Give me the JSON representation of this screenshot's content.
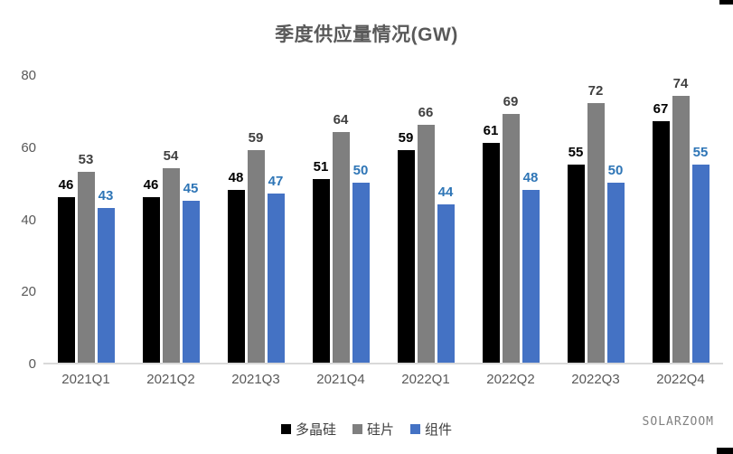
{
  "chart_data": {
    "type": "bar",
    "title": "季度供应量情况(GW)",
    "categories": [
      "2021Q1",
      "2021Q2",
      "2021Q3",
      "2021Q4",
      "2022Q1",
      "2022Q2",
      "2022Q3",
      "2022Q4"
    ],
    "series": [
      {
        "name": "多晶硅",
        "color": "#000000",
        "label_color": "#000000",
        "values": [
          46,
          46,
          48,
          51,
          59,
          61,
          55,
          67
        ]
      },
      {
        "name": "硅片",
        "color": "#7f7f7f",
        "label_color": "#404040",
        "values": [
          53,
          54,
          59,
          64,
          66,
          69,
          72,
          74
        ]
      },
      {
        "name": "组件",
        "color": "#4472c4",
        "label_color": "#2e75b6",
        "values": [
          43,
          45,
          47,
          50,
          44,
          48,
          50,
          55
        ]
      }
    ],
    "y_ticks": [
      0,
      20,
      40,
      60,
      80
    ],
    "ylim": [
      0,
      80
    ],
    "grid": false,
    "legend_position": "bottom",
    "data_labels": true
  },
  "watermark": "SOLARZOOM",
  "colors": {
    "title": "#595959",
    "axis_text": "#595959",
    "axis_line": "#d9d9d9",
    "legend_text": "#404040",
    "watermark_text": "#808080"
  }
}
